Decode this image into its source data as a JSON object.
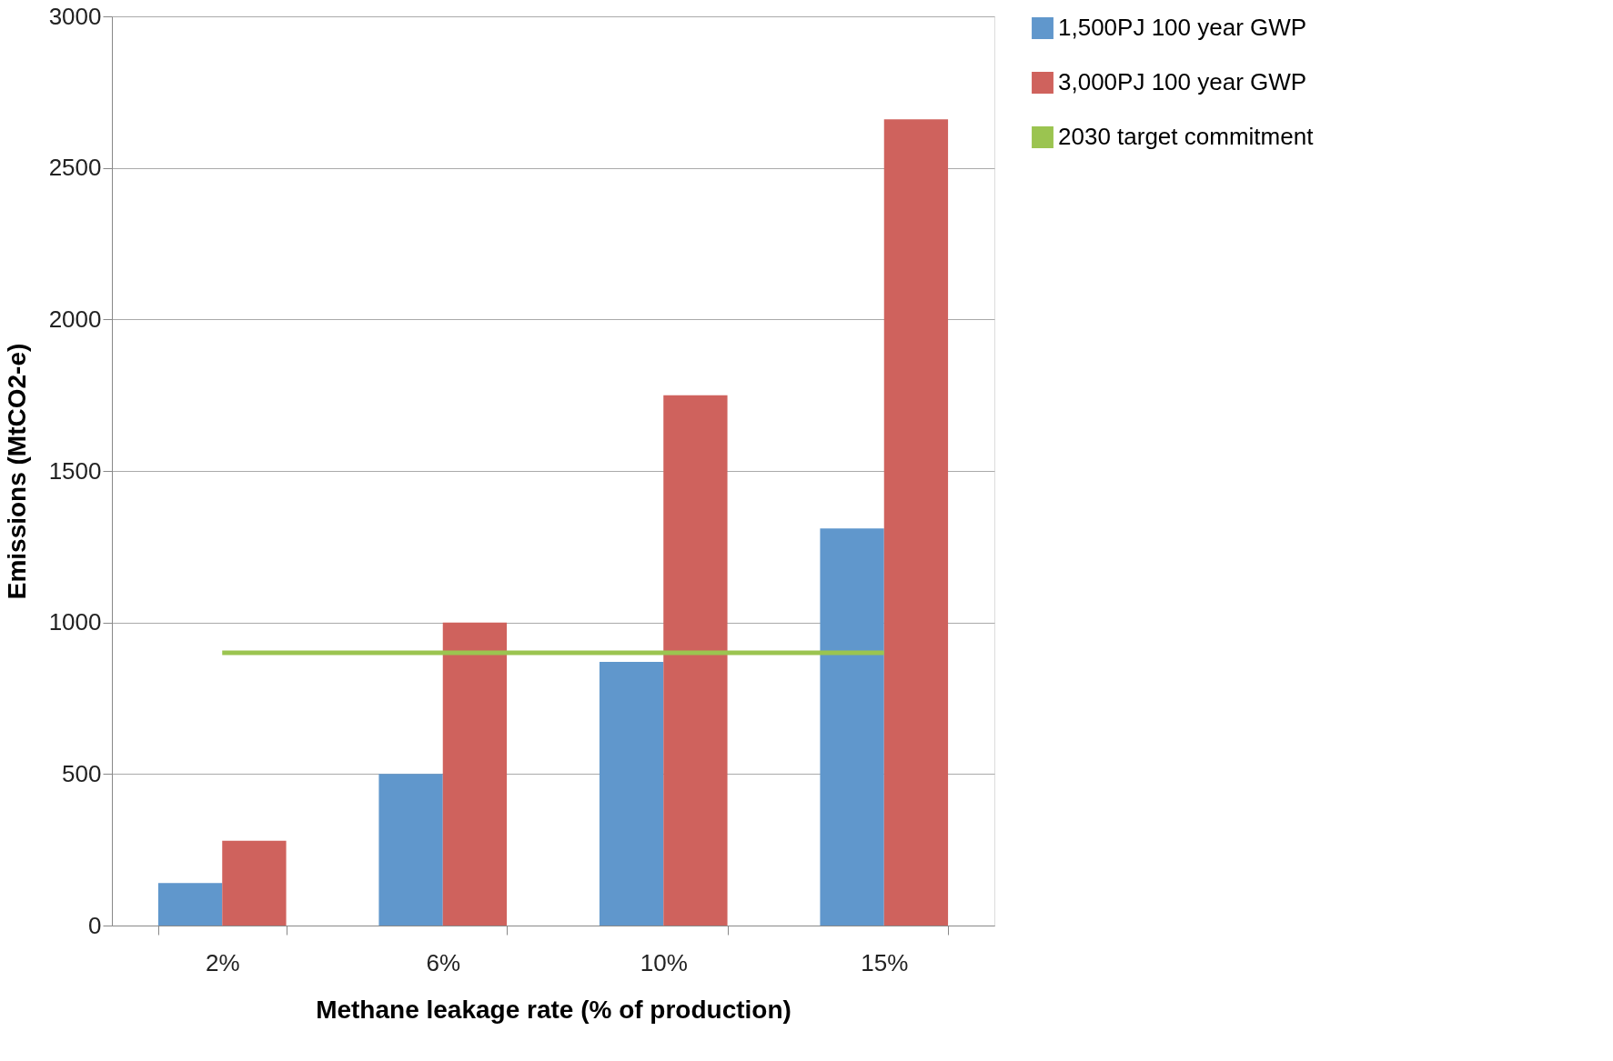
{
  "chart_data": {
    "type": "bar",
    "xlabel": "Methane leakage rate (% of production)",
    "ylabel": "Emissions (MtCO2-e)",
    "categories": [
      "2%",
      "6%",
      "10%",
      "15%"
    ],
    "series": [
      {
        "name": "1,500PJ 100 year GWP",
        "color": "#6097cc",
        "values": [
          140,
          500,
          870,
          1310
        ]
      },
      {
        "name": "3,000PJ 100 year GWP",
        "color": "#cf625d",
        "values": [
          280,
          1000,
          1750,
          2660
        ]
      },
      {
        "name": "2030 target commitment",
        "color": "#9bc450",
        "type": "line",
        "values": [
          900,
          900,
          900,
          900
        ]
      }
    ],
    "ylim": [
      0,
      3000
    ],
    "yticks": [
      0,
      500,
      1000,
      1500,
      2000,
      2500,
      3000
    ],
    "grid": "y",
    "legend": "right",
    "marker": "none",
    "line_style": "solid"
  }
}
